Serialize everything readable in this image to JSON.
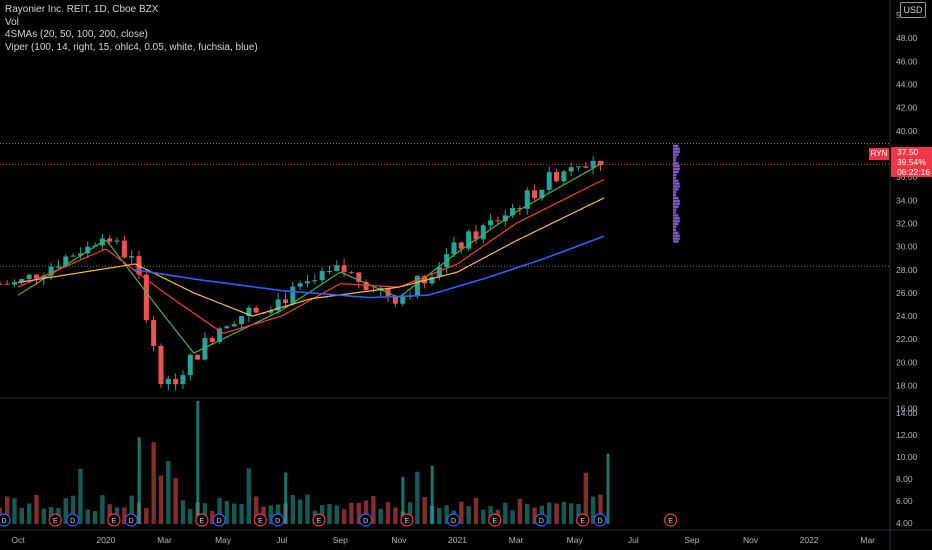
{
  "legend": {
    "line1": "Rayonier Inc. REIT, 1D, Cboe BZX",
    "line2": "Vol",
    "line3": "4SMAs (20, 50, 100, 200, close)",
    "line4": "Viper (100, 14, right, 15, ohlc4, 0.05, white, fuchsia, blue)"
  },
  "currency_label": "USD",
  "price_tag": {
    "symbol": "RYN",
    "price": "37.50",
    "change": "39.54%",
    "countdown": "06:22:16"
  },
  "colors": {
    "background": "#000000",
    "up": "#26a69a",
    "down": "#ef5350",
    "sma20": "#4caf50",
    "sma50": "#f44336",
    "sma100": "#ffb74d",
    "sma200": "#2962ff",
    "viper": "#7e57c2",
    "tag": "#f23645"
  },
  "chart_data": [
    {
      "type": "candlestick",
      "title": "Rayonier Inc. REIT, 1D, Cboe BZX",
      "x_ticks": [
        "Oct",
        "2020",
        "Mar",
        "May",
        "Jul",
        "Sep",
        "Nov",
        "2021",
        "Mar",
        "May",
        "Jul",
        "Sep",
        "Nov",
        "2022",
        "Mar"
      ],
      "y_ticks": [
        "16.00",
        "18.00",
        "20.00",
        "22.00",
        "24.00",
        "26.00",
        "28.00",
        "30.00",
        "32.00",
        "34.00",
        "36.00",
        "38.00",
        "40.00",
        "42.00",
        "44.00",
        "46.00",
        "48.00",
        "50.00"
      ],
      "ylim": [
        15.2,
        50.6
      ],
      "grid": false,
      "price_path_approx": [
        {
          "x": "Oct 2019",
          "y": 26.8
        },
        {
          "x": "Jan 2020",
          "y": 31.0
        },
        {
          "x": "Feb 2020",
          "y": 28.5
        },
        {
          "x": "Mar 2020",
          "y": 17.5
        },
        {
          "x": "May 2020",
          "y": 23.5
        },
        {
          "x": "Jul 2020",
          "y": 25.5
        },
        {
          "x": "Sep 2020",
          "y": 28.0
        },
        {
          "x": "Nov 2020",
          "y": 25.5
        },
        {
          "x": "Jan 2021",
          "y": 30.0
        },
        {
          "x": "Mar 2021",
          "y": 33.5
        },
        {
          "x": "May 2021",
          "y": 37.5
        },
        {
          "x": "Jun 2021",
          "y": 37.5
        }
      ],
      "horizontal_lines": [
        38.9,
        37.1,
        28.3
      ],
      "last_price": 37.5,
      "series": [
        {
          "name": "SMA 20",
          "color": "#4caf50",
          "approx_points": [
            {
              "x": "Oct 2019",
              "y": 25.8
            },
            {
              "x": "Jan 2020",
              "y": 30.6
            },
            {
              "x": "Mar 2020",
              "y": 24.0
            },
            {
              "x": "Apr 2020",
              "y": 20.8
            },
            {
              "x": "Jul 2020",
              "y": 24.5
            },
            {
              "x": "Sep 2020",
              "y": 27.8
            },
            {
              "x": "Nov 2020",
              "y": 25.6
            },
            {
              "x": "Jan 2021",
              "y": 29.5
            },
            {
              "x": "Mar 2021",
              "y": 33.0
            },
            {
              "x": "Jun 2021",
              "y": 37.3
            }
          ]
        },
        {
          "name": "SMA 50",
          "color": "#f44336",
          "approx_points": [
            {
              "x": "Oct 2019",
              "y": 26.5
            },
            {
              "x": "Jan 2020",
              "y": 29.8
            },
            {
              "x": "Mar 2020",
              "y": 26.0
            },
            {
              "x": "May 2020",
              "y": 22.5
            },
            {
              "x": "Jul 2020",
              "y": 24.0
            },
            {
              "x": "Sep 2020",
              "y": 26.8
            },
            {
              "x": "Nov 2020",
              "y": 26.5
            },
            {
              "x": "Jan 2021",
              "y": 28.5
            },
            {
              "x": "Mar 2021",
              "y": 32.0
            },
            {
              "x": "Jun 2021",
              "y": 35.8
            }
          ]
        },
        {
          "name": "SMA 100",
          "color": "#ffb74d",
          "approx_points": [
            {
              "x": "Oct 2019",
              "y": 26.9
            },
            {
              "x": "Feb 2020",
              "y": 28.5
            },
            {
              "x": "Apr 2020",
              "y": 26.0
            },
            {
              "x": "Jun 2020",
              "y": 24.0
            },
            {
              "x": "Aug 2020",
              "y": 25.5
            },
            {
              "x": "Nov 2020",
              "y": 26.5
            },
            {
              "x": "Jan 2021",
              "y": 27.8
            },
            {
              "x": "Mar 2021",
              "y": 30.5
            },
            {
              "x": "Jun 2021",
              "y": 34.2
            }
          ]
        },
        {
          "name": "SMA 200",
          "color": "#2962ff",
          "approx_points": [
            {
              "x": "Feb 2020",
              "y": 28.0
            },
            {
              "x": "Apr 2020",
              "y": 27.2
            },
            {
              "x": "Jul 2020",
              "y": 26.2
            },
            {
              "x": "Oct 2020",
              "y": 25.6
            },
            {
              "x": "Dec 2020",
              "y": 25.8
            },
            {
              "x": "Feb 2021",
              "y": 27.3
            },
            {
              "x": "Apr 2021",
              "y": 29.0
            },
            {
              "x": "Jun 2021",
              "y": 30.9
            }
          ]
        },
        {
          "name": "Viper",
          "color": "#7e57c2",
          "type": "volume_profile",
          "price_range": [
            30.3,
            38.7
          ]
        }
      ]
    },
    {
      "type": "bar",
      "title": "Vol",
      "y_ticks": [
        "4.00",
        "6.00",
        "8.00",
        "10.00",
        "12.00",
        "14.00"
      ],
      "ylim": [
        3.9,
        15.2
      ],
      "notable_values_approx": [
        15.1,
        11.8,
        10.3,
        9.2,
        8.6,
        8.2
      ]
    }
  ],
  "events": {
    "labels": [
      "D",
      "E",
      "D",
      "E",
      "D",
      "E",
      "D",
      "E",
      "D",
      "E",
      "D",
      "E",
      "D",
      "E",
      "D",
      "E"
    ]
  }
}
